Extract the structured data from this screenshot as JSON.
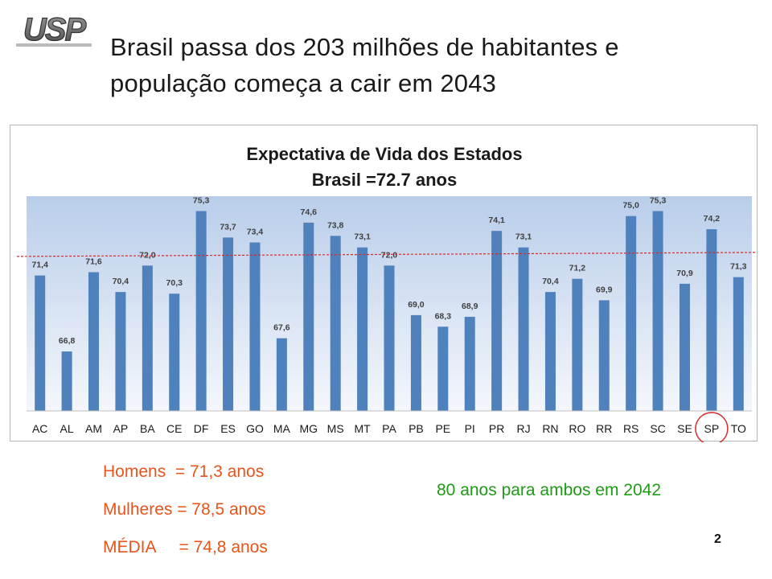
{
  "logo": {
    "text": "USP"
  },
  "slide": {
    "title_line1": "Brasil passa dos 203 milhões de habitantes e",
    "title_line2": "população começa a cair em 2043",
    "number": "2"
  },
  "chart_data": {
    "type": "bar",
    "title": "Expectativa de Vida dos Estados",
    "subtitle": "Brasil =72.7 anos",
    "categories": [
      "AC",
      "AL",
      "AM",
      "AP",
      "BA",
      "CE",
      "DF",
      "ES",
      "GO",
      "MA",
      "MG",
      "MS",
      "MT",
      "PA",
      "PB",
      "PE",
      "PI",
      "PR",
      "RJ",
      "RN",
      "RO",
      "RR",
      "RS",
      "SC",
      "SE",
      "SP",
      "TO"
    ],
    "values": [
      71.4,
      66.8,
      71.6,
      70.4,
      72.0,
      70.3,
      75.3,
      73.7,
      73.4,
      67.6,
      74.6,
      73.8,
      73.1,
      72.0,
      69.0,
      68.3,
      68.9,
      74.1,
      73.1,
      70.4,
      71.2,
      69.9,
      75.0,
      75.3,
      70.9,
      74.2,
      71.3
    ],
    "value_labels": [
      "71,4",
      "66,8",
      "71,6",
      "70,4",
      "72,0",
      "70,3",
      "75,3",
      "73,7",
      "73,4",
      "67,6",
      "74,6",
      "73,8",
      "73,1",
      "72,0",
      "69,0",
      "68,3",
      "68,9",
      "74,1",
      "73,1",
      "70,4",
      "71,2",
      "69,9",
      "75,0",
      "75,3",
      "70,9",
      "74,2",
      "71,3"
    ],
    "ylim": [
      63.2,
      76.2
    ],
    "reference_line": {
      "value": 72.7,
      "style": "dashed",
      "color": "#d62c2c"
    },
    "highlight": {
      "category": "SP",
      "shape": "circle",
      "color": "#d62c2c"
    },
    "grid": false,
    "bar_color": "#4f81bd",
    "plot_background": [
      "#b9cdea",
      "#f4f7fc"
    ]
  },
  "stats": {
    "homens": "Homens  = 71,3 anos",
    "mulheres": "Mulheres = 78,5 anos",
    "media": "MÉDIA     = 74,8 anos"
  },
  "note": "80 anos para ambos em 2042",
  "colors": {
    "stats_text": "#e8541b",
    "note_text": "#1f9a16",
    "title_text": "#1a1a1a"
  }
}
